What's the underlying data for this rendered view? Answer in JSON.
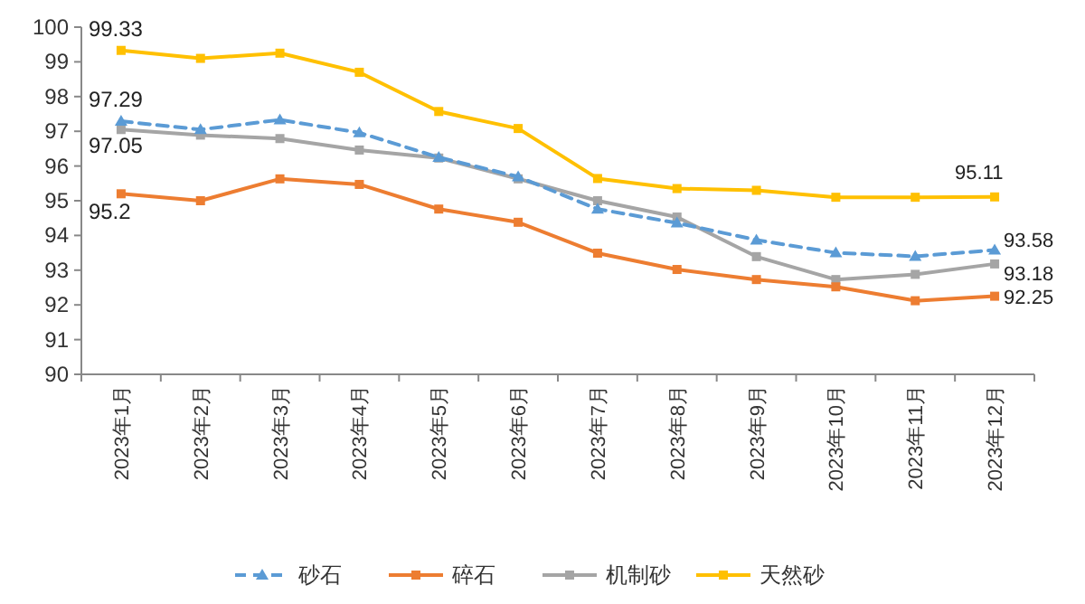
{
  "chart_data": {
    "type": "line",
    "categories": [
      "2023年1月",
      "2023年2月",
      "2023年3月",
      "2023年4月",
      "2023年5月",
      "2023年6月",
      "2023年7月",
      "2023年8月",
      "2023年9月",
      "2023年10月",
      "2023年11月",
      "2023年12月"
    ],
    "ylim": [
      90,
      100
    ],
    "yticks": [
      90,
      91,
      92,
      93,
      94,
      95,
      96,
      97,
      98,
      99,
      100
    ],
    "legend": "bottom",
    "series": [
      {
        "name": "砂石",
        "color": "#5b9bd5",
        "line_style": "dashed",
        "marker": "triangle",
        "values": [
          97.29,
          97.05,
          97.33,
          96.96,
          96.25,
          95.69,
          94.76,
          94.36,
          93.87,
          93.5,
          93.4,
          93.58
        ],
        "value_labels": [
          "97.29",
          null,
          null,
          null,
          null,
          null,
          null,
          null,
          null,
          null,
          null,
          "93.58"
        ]
      },
      {
        "name": "碎石",
        "color": "#ed7d31",
        "line_style": "solid",
        "marker": "square",
        "values": [
          95.2,
          95.0,
          95.63,
          95.47,
          94.76,
          94.38,
          93.49,
          93.02,
          92.73,
          92.52,
          92.12,
          92.25
        ],
        "value_labels": [
          "95.2",
          null,
          null,
          null,
          null,
          null,
          null,
          null,
          null,
          null,
          null,
          "92.25"
        ]
      },
      {
        "name": "机制砂",
        "color": "#a5a5a5",
        "line_style": "solid",
        "marker": "square",
        "values": [
          97.05,
          96.89,
          96.79,
          96.46,
          96.23,
          95.63,
          95.0,
          94.53,
          93.39,
          92.73,
          92.88,
          93.18
        ],
        "value_labels": [
          "97.05",
          null,
          null,
          null,
          null,
          null,
          null,
          null,
          null,
          null,
          null,
          "93.18"
        ]
      },
      {
        "name": "天然砂",
        "color": "#ffc000",
        "line_style": "solid",
        "marker": "square",
        "values": [
          99.33,
          99.1,
          99.25,
          98.7,
          97.57,
          97.08,
          95.64,
          95.35,
          95.3,
          95.1,
          95.1,
          95.11
        ],
        "value_labels": [
          "99.33",
          null,
          null,
          null,
          null,
          null,
          null,
          null,
          null,
          null,
          null,
          "95.11"
        ]
      }
    ]
  }
}
